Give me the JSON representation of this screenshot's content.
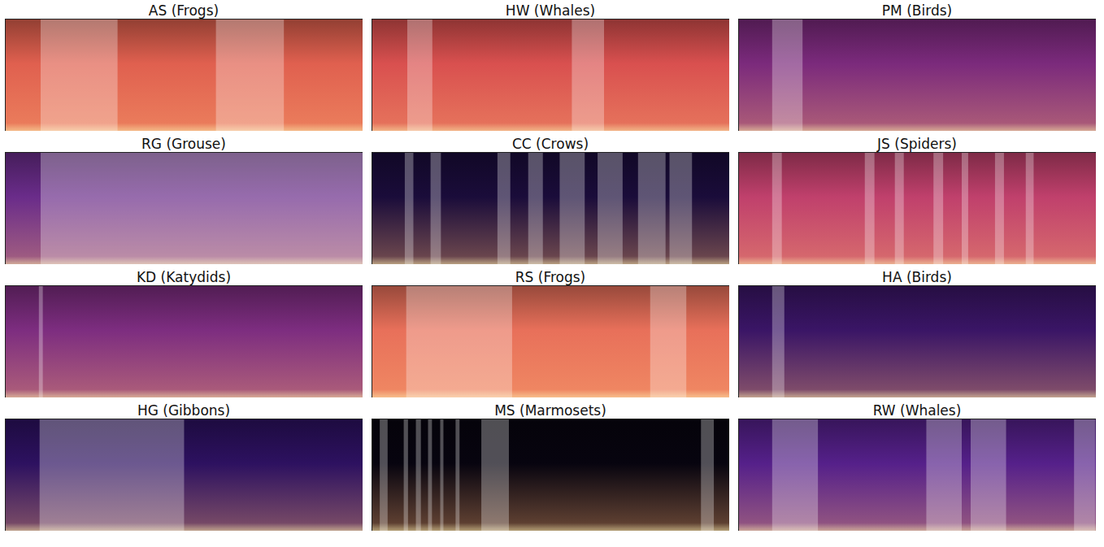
{
  "chart_data": [
    {
      "type": "spectrogram",
      "title": "AS (Frogs)",
      "xlim": [
        0,
        100
      ],
      "tick_labels": false,
      "color": "#e0604f",
      "segments": [
        [
          10,
          31.5
        ],
        [
          59,
          78
        ]
      ]
    },
    {
      "type": "spectrogram",
      "title": "HW (Whales)",
      "xlim": [
        0,
        100
      ],
      "tick_labels": false,
      "color": "#d9504f",
      "segments": [
        [
          10,
          17
        ],
        [
          56,
          65
        ]
      ]
    },
    {
      "type": "spectrogram",
      "title": "PM (Birds)",
      "xlim": [
        0,
        100
      ],
      "tick_labels": false,
      "color": "#7b2a7c",
      "segments": [
        [
          9.5,
          18
        ]
      ]
    },
    {
      "type": "spectrogram",
      "title": "RG (Grouse)",
      "xlim": [
        0,
        100
      ],
      "tick_labels": false,
      "color": "#6a2c8a",
      "segments": [
        [
          10,
          100
        ]
      ]
    },
    {
      "type": "spectrogram",
      "title": "CC (Crows)",
      "xlim": [
        0,
        100
      ],
      "tick_labels": false,
      "color": "#1a0c3a",
      "segments": [
        [
          9.3,
          11.7
        ],
        [
          16.5,
          19.4
        ],
        [
          35.2,
          38.8
        ],
        [
          43.8,
          47.9
        ],
        [
          52.6,
          59.6
        ],
        [
          63.2,
          70.2
        ],
        [
          74.5,
          82.2
        ],
        [
          83.3,
          89.6
        ]
      ]
    },
    {
      "type": "spectrogram",
      "title": "JS (Spiders)",
      "xlim": [
        0,
        100
      ],
      "tick_labels": false,
      "color": "#c0406c",
      "segments": [
        [
          9.5,
          12.2
        ],
        [
          35.4,
          38.1
        ],
        [
          43.8,
          46.3
        ],
        [
          54.6,
          57.3
        ],
        [
          62.5,
          64.3
        ],
        [
          71.8,
          74.3
        ],
        [
          80.4,
          82.6
        ]
      ]
    },
    {
      "type": "spectrogram",
      "title": "KD (Katydids)",
      "xlim": [
        0,
        100
      ],
      "tick_labels": false,
      "color": "#7d2d80",
      "segments": [
        [
          9.5,
          10.6
        ]
      ]
    },
    {
      "type": "spectrogram",
      "title": "RS (Frogs)",
      "xlim": [
        0,
        100
      ],
      "tick_labels": false,
      "color": "#e8705a",
      "segments": [
        [
          9.7,
          39.3
        ],
        [
          77.9,
          88
        ]
      ]
    },
    {
      "type": "spectrogram",
      "title": "HA (Birds)",
      "xlim": [
        0,
        100
      ],
      "tick_labels": false,
      "color": "#3a1566",
      "segments": [
        [
          9.5,
          12.9
        ]
      ]
    },
    {
      "type": "spectrogram",
      "title": "HG (Gibbons)",
      "xlim": [
        0,
        100
      ],
      "tick_labels": false,
      "color": "#2d1160",
      "segments": [
        [
          9.7,
          50.1
        ]
      ]
    },
    {
      "type": "spectrogram",
      "title": "MS (Marmosets)",
      "xlim": [
        0,
        100
      ],
      "tick_labels": false,
      "color": "#07040f",
      "segments": [
        [
          2.3,
          4.5
        ],
        [
          9,
          10.2
        ],
        [
          12.4,
          13.8
        ],
        [
          15.8,
          16.9
        ],
        [
          19.2,
          20.1
        ],
        [
          23.5,
          24.6
        ],
        [
          30.7,
          38.4
        ],
        [
          92.1,
          95.7
        ]
      ]
    },
    {
      "type": "spectrogram",
      "title": "RW (Whales)",
      "xlim": [
        0,
        100
      ],
      "tick_labels": false,
      "color": "#55208a",
      "segments": [
        [
          9.5,
          22.3
        ],
        [
          52.6,
          62.5
        ],
        [
          65,
          74.9
        ],
        [
          93.9,
          99.8
        ]
      ]
    }
  ]
}
